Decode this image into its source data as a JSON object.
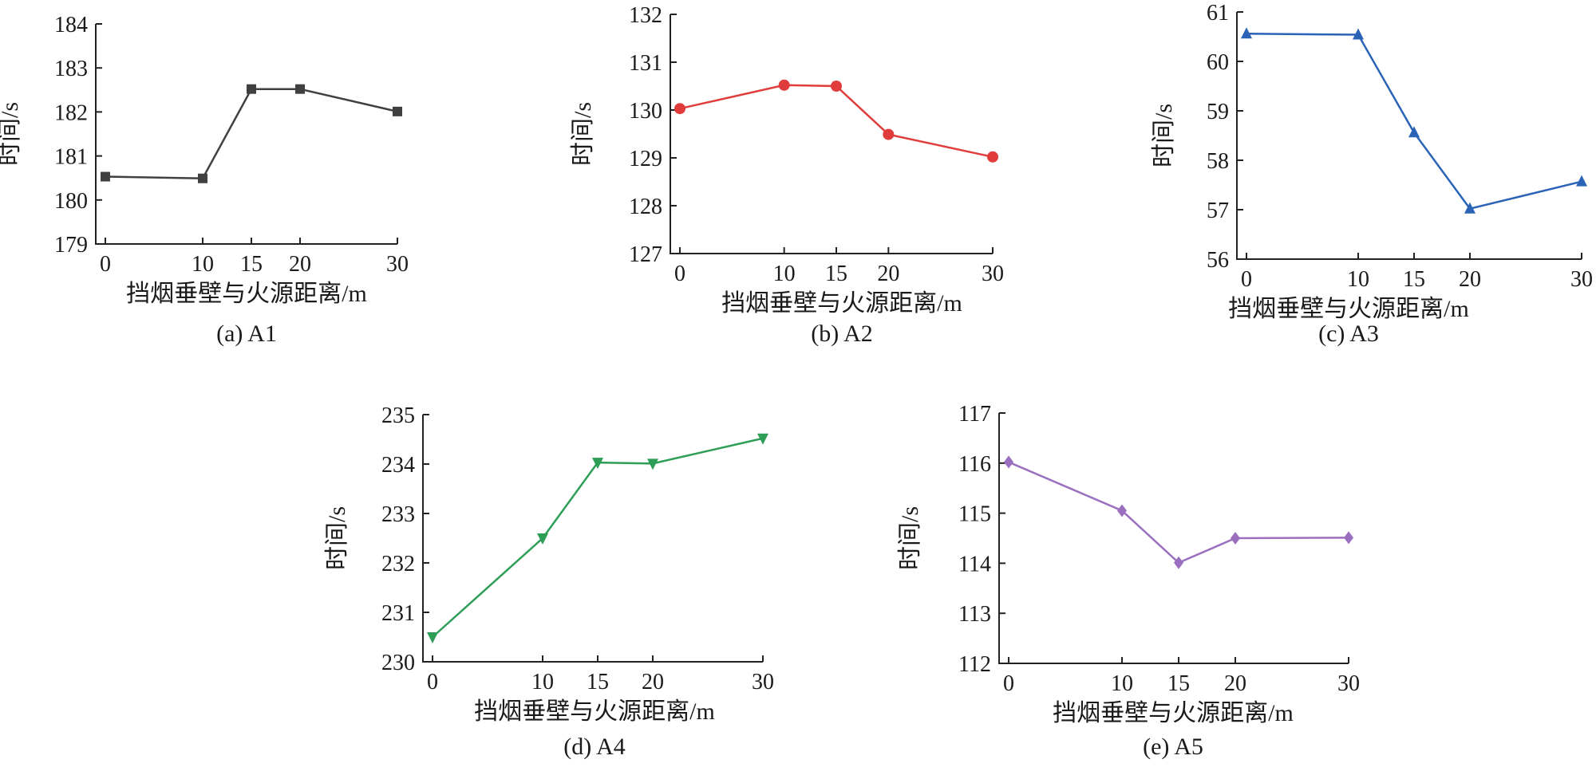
{
  "chart_data": [
    {
      "type": "line",
      "caption": "(a) A1",
      "xlabel": "挡烟垂壁与火源距离/m",
      "ylabel": "时间/s",
      "x": [
        0,
        10,
        15,
        20,
        30
      ],
      "x_ticks": [
        0,
        10,
        15,
        20,
        30
      ],
      "ylim": [
        179,
        184
      ],
      "y_ticks": [
        179,
        180,
        181,
        182,
        183,
        184
      ],
      "series": [
        {
          "values": [
            180.53,
            180.49,
            182.52,
            182.52,
            182.01
          ],
          "color": "#404040",
          "marker": "square"
        }
      ]
    },
    {
      "type": "line",
      "caption": "(b) A2",
      "xlabel": "挡烟垂壁与火源距离/m",
      "ylabel": "时间/s",
      "x": [
        0,
        10,
        15,
        20,
        30
      ],
      "x_ticks": [
        0,
        10,
        15,
        20,
        30
      ],
      "ylim": [
        127,
        132
      ],
      "y_ticks": [
        127,
        128,
        129,
        130,
        131,
        132
      ],
      "series": [
        {
          "values": [
            130.03,
            130.52,
            130.5,
            129.49,
            129.02
          ],
          "color": "#e03c3c",
          "marker": "circle"
        }
      ]
    },
    {
      "type": "line",
      "caption": "(c) A3",
      "xlabel": "挡烟垂壁与火源距离/m",
      "ylabel": "时间/s",
      "x": [
        0,
        10,
        15,
        20,
        30
      ],
      "x_ticks": [
        0,
        10,
        15,
        20,
        30
      ],
      "ylim": [
        56,
        61
      ],
      "y_ticks": [
        56,
        57,
        58,
        59,
        60,
        61
      ],
      "series": [
        {
          "values": [
            60.56,
            60.54,
            58.56,
            57.02,
            57.57
          ],
          "color": "#2b63b6",
          "marker": "triangle-up"
        }
      ]
    },
    {
      "type": "line",
      "caption": "(d) A4",
      "xlabel": "挡烟垂壁与火源距离/m",
      "ylabel": "时间/s",
      "x": [
        0,
        10,
        15,
        20,
        30
      ],
      "x_ticks": [
        0,
        10,
        15,
        20,
        30
      ],
      "ylim": [
        230,
        235
      ],
      "y_ticks": [
        230,
        231,
        232,
        233,
        234,
        235
      ],
      "series": [
        {
          "values": [
            230.5,
            232.5,
            234.03,
            234.01,
            234.52
          ],
          "color": "#2e9e57",
          "marker": "triangle-down"
        }
      ]
    },
    {
      "type": "line",
      "caption": "(e) A5",
      "xlabel": "挡烟垂壁与火源距离/m",
      "ylabel": "时间/s",
      "x": [
        0,
        10,
        15,
        20,
        30
      ],
      "x_ticks": [
        0,
        10,
        15,
        20,
        30
      ],
      "ylim": [
        112,
        117
      ],
      "y_ticks": [
        112,
        113,
        114,
        115,
        116,
        117
      ],
      "series": [
        {
          "values": [
            116.02,
            115.05,
            114.01,
            114.5,
            114.51
          ],
          "color": "#9b6fbf",
          "marker": "diamond"
        }
      ]
    }
  ]
}
